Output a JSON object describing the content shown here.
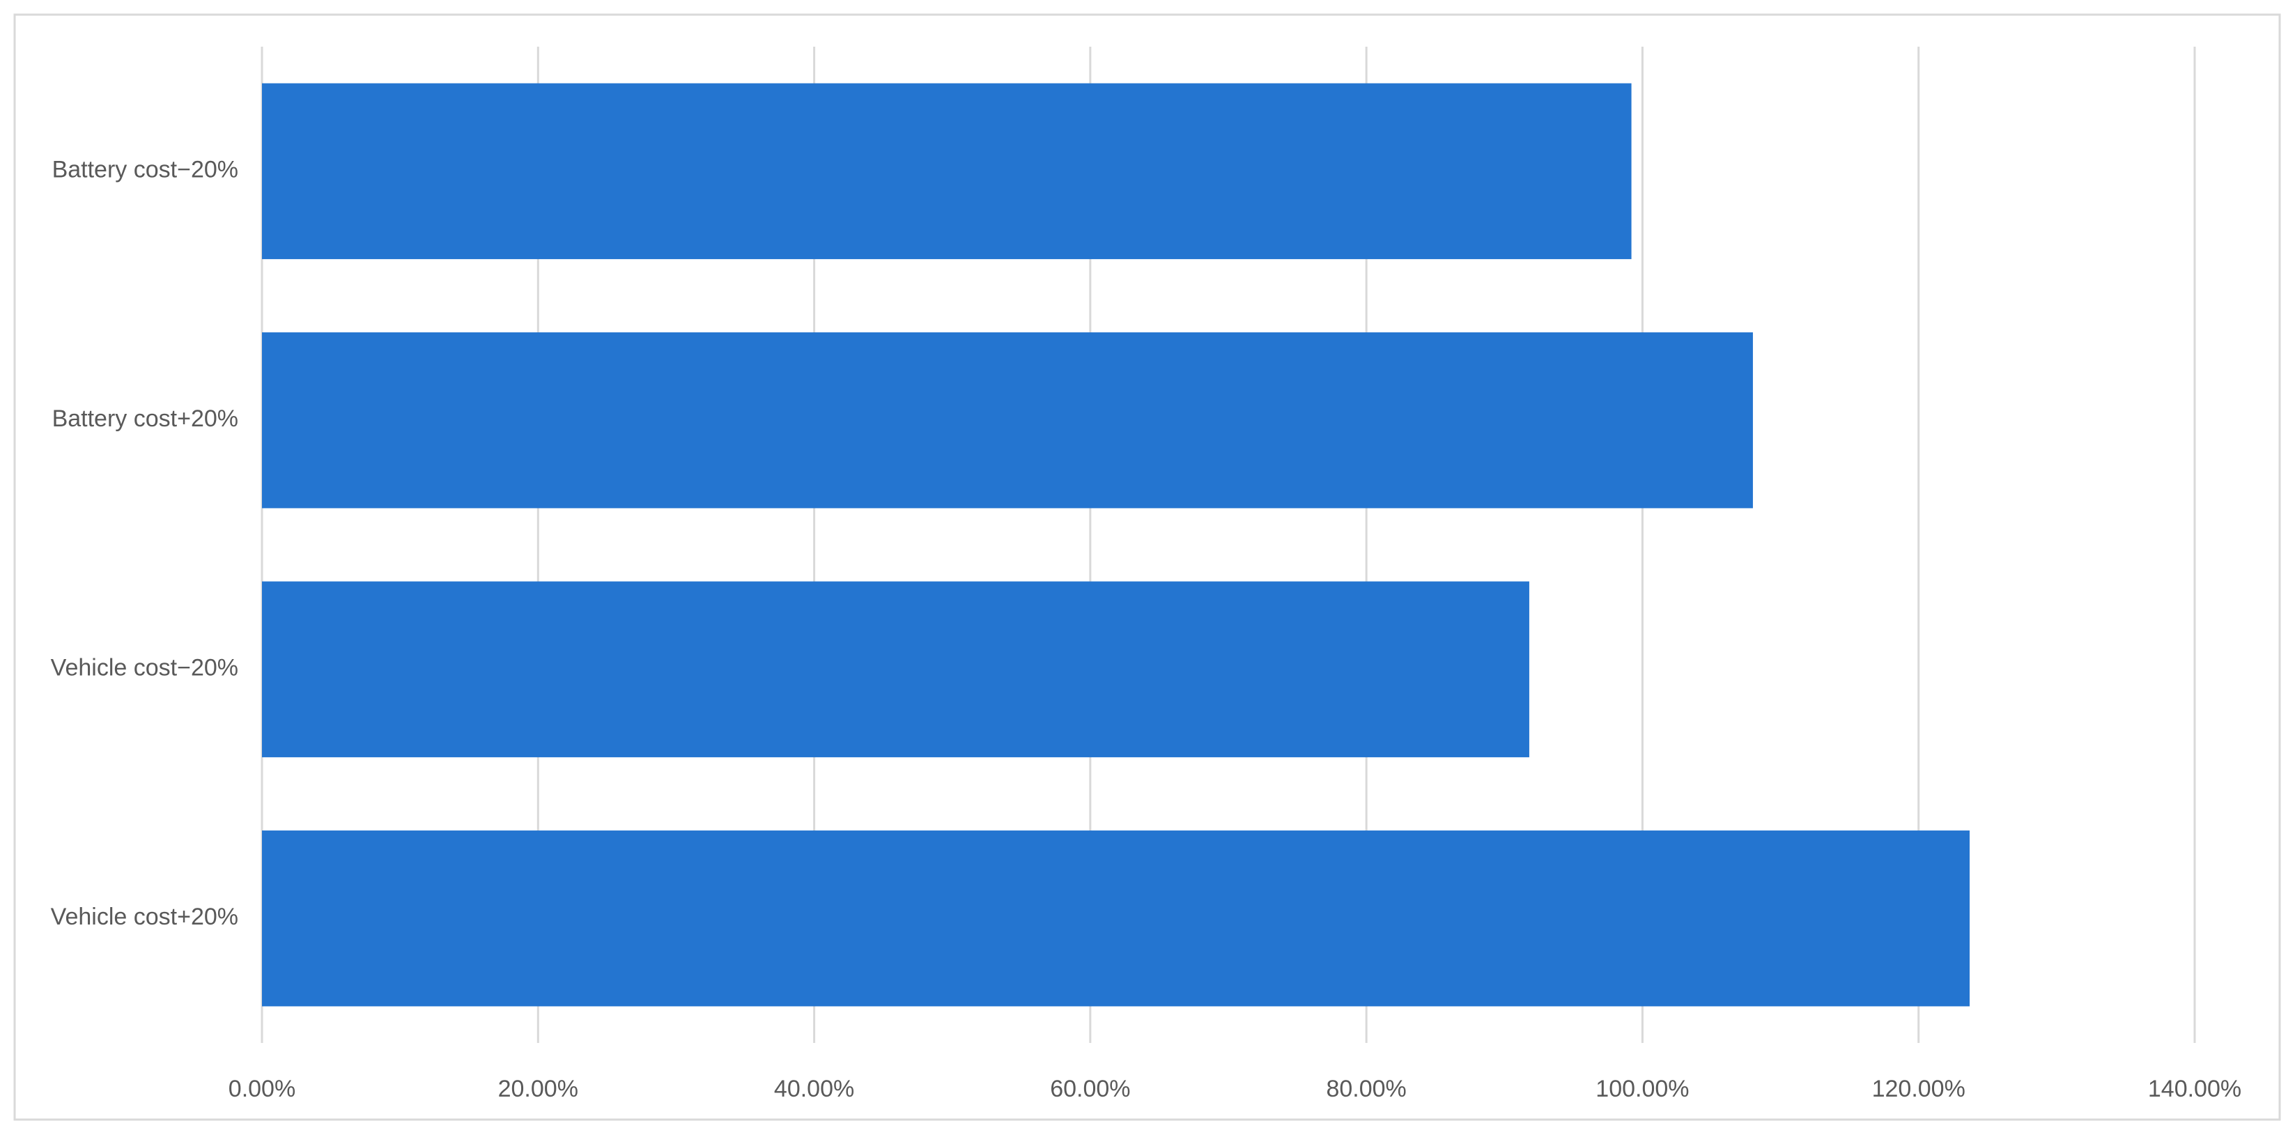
{
  "chart_data": {
    "type": "barh",
    "categories": [
      "Battery cost−20%",
      "Battery cost+20%",
      "Vehicle cost−20%",
      "Vehicle cost+20%"
    ],
    "values": [
      99.2,
      108.0,
      91.8,
      123.7
    ],
    "color": "#2475d0",
    "xlim": [
      0,
      140
    ],
    "xticks": [
      {
        "value": 0,
        "label": "0.00%"
      },
      {
        "value": 20,
        "label": "20.00%"
      },
      {
        "value": 40,
        "label": "40.00%"
      },
      {
        "value": 60,
        "label": "60.00%"
      },
      {
        "value": 80,
        "label": "80.00%"
      },
      {
        "value": 100,
        "label": "100.00%"
      },
      {
        "value": 120,
        "label": "120.00%"
      },
      {
        "value": 140,
        "label": "140.00%"
      }
    ],
    "grid": true
  }
}
